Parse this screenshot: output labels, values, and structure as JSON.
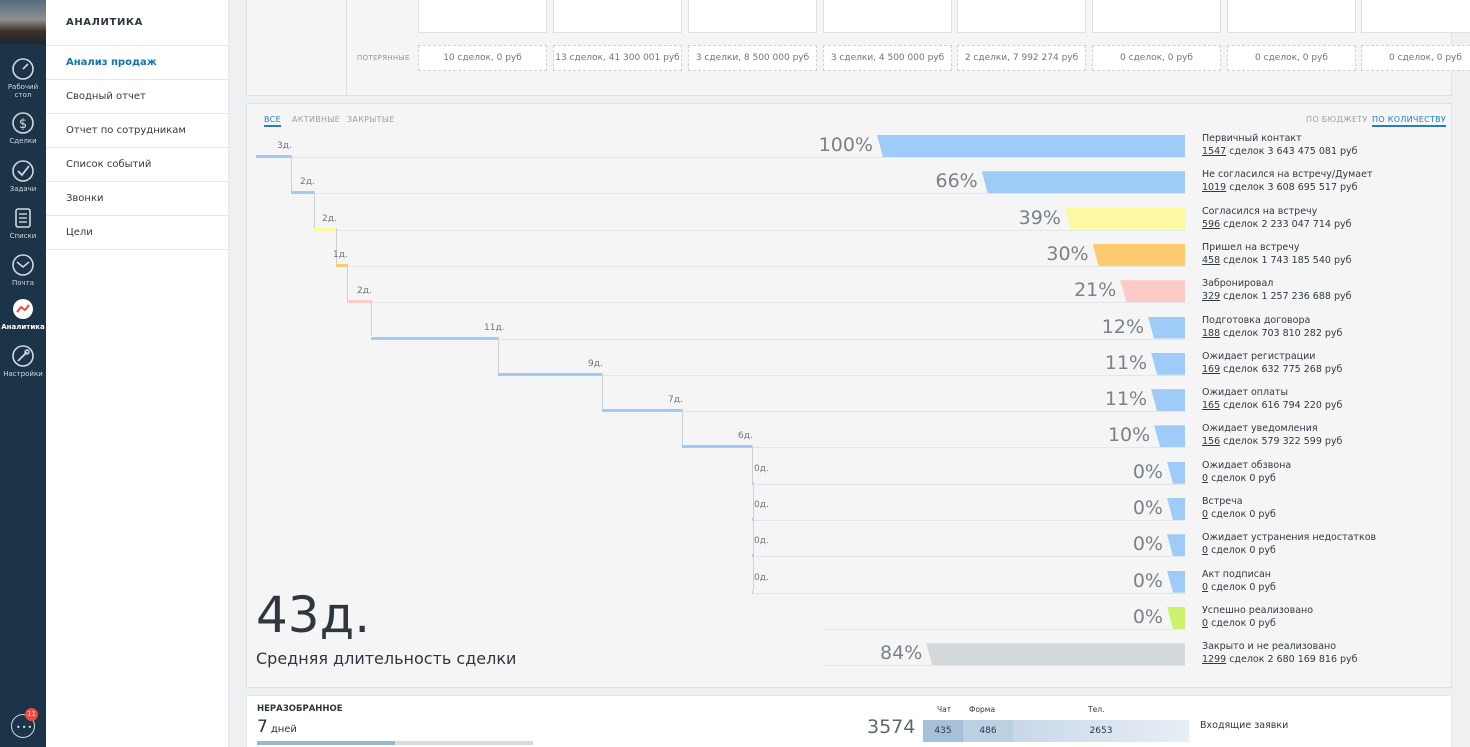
{
  "rail": {
    "items": [
      {
        "label": "Рабочий стол",
        "icon": "dashboard-icon"
      },
      {
        "label": "Сделки",
        "icon": "deals-icon"
      },
      {
        "label": "Задачи",
        "icon": "tasks-icon"
      },
      {
        "label": "Списки",
        "icon": "lists-icon"
      },
      {
        "label": "Почта",
        "icon": "mail-icon"
      },
      {
        "label": "Аналитика",
        "icon": "analytics-icon"
      },
      {
        "label": "Настройки",
        "icon": "settings-icon"
      }
    ],
    "chat_badge": "11"
  },
  "submenu": {
    "title": "АНАЛИТИКА",
    "items": [
      "Анализ продаж",
      "Сводный отчет",
      "Отчет по сотрудникам",
      "Список событий",
      "Звонки",
      "Цели"
    ]
  },
  "top_panel": {
    "lost_label": "ПОТЕРЯННЫЕ",
    "lost": [
      "10 сделок, 0 руб",
      "13 сделок, 41 300 001 руб",
      "3 сделки, 8 500 000 руб",
      "3 сделки, 4 500 000 руб",
      "2 сделки, 7 992 274 руб",
      "0 сделок, 0 руб",
      "0 сделок, 0 руб",
      "0 сделок, 0 руб"
    ]
  },
  "funnel": {
    "tabs": {
      "all": "ВСЕ",
      "active": "АКТИВНЫЕ",
      "closed": "ЗАКРЫТЫЕ",
      "by_budget": "ПО БЮДЖЕТУ",
      "by_count": "ПО КОЛИЧЕСТВУ"
    },
    "stages": [
      {
        "name": "Первичный контакт",
        "count": "1547",
        "rest": " сделок 3 643 475 081 руб",
        "pct": "100%",
        "value": 100,
        "color": "#9ecbf7",
        "days": "3д."
      },
      {
        "name": "Не согласился на встречу/Думает",
        "count": "1019",
        "rest": " сделок 3 608 695 517 руб",
        "pct": "66%",
        "value": 66,
        "color": "#9ecbf7",
        "days": "2д."
      },
      {
        "name": "Согласился на встречу",
        "count": "596",
        "rest": " сделок 2 233 047 714 руб",
        "pct": "39%",
        "value": 39,
        "color": "#fbf9a1",
        "days": "2д."
      },
      {
        "name": "Пришел на встречу",
        "count": "458",
        "rest": " сделок 1 743 185 540 руб",
        "pct": "30%",
        "value": 30,
        "color": "#fdcb6e",
        "days": "1д."
      },
      {
        "name": "Забронировал",
        "count": "329",
        "rest": " сделок 1 257 236 688 руб",
        "pct": "21%",
        "value": 21,
        "color": "#fccbc7",
        "days": "2д."
      },
      {
        "name": "Подготовка договора",
        "count": "188",
        "rest": " сделок 703 810 282 руб",
        "pct": "12%",
        "value": 12,
        "color": "#9ecbf7",
        "days": "11д."
      },
      {
        "name": "Ожидает регистрации",
        "count": "169",
        "rest": " сделок 632 775 268 руб",
        "pct": "11%",
        "value": 11,
        "color": "#9ecbf7",
        "days": "9д."
      },
      {
        "name": "Ожидает оплаты",
        "count": "165",
        "rest": " сделок 616 794 220 руб",
        "pct": "11%",
        "value": 11,
        "color": "#9ecbf7",
        "days": "7д."
      },
      {
        "name": "Ожидает уведомления",
        "count": "156",
        "rest": " сделок 579 322 599 руб",
        "pct": "10%",
        "value": 10,
        "color": "#9ecbf7",
        "days": "6д."
      },
      {
        "name": "Ожидает обзвона",
        "count": "0",
        "rest": " сделок 0 руб",
        "pct": "0%",
        "value": 0,
        "color": "#9ecbf7",
        "days": "0д."
      },
      {
        "name": "Встреча",
        "count": "0",
        "rest": " сделок 0 руб",
        "pct": "0%",
        "value": 0,
        "color": "#9ecbf7",
        "days": "0д."
      },
      {
        "name": "Ожидает устранения недостатков",
        "count": "0",
        "rest": " сделок 0 руб",
        "pct": "0%",
        "value": 0,
        "color": "#9ecbf7",
        "days": "0д."
      },
      {
        "name": "Акт подписан",
        "count": "0",
        "rest": " сделок 0 руб",
        "pct": "0%",
        "value": 0,
        "color": "#9ecbf7",
        "days": "0д."
      },
      {
        "name": "Успешно реализовано",
        "count": "0",
        "rest": " сделок 0 руб",
        "pct": "0%",
        "value": 0,
        "color": "#ccf26e",
        "days": ""
      },
      {
        "name": "Закрыто и не реализовано",
        "count": "1299",
        "rest": " сделок 2 680 169 816 руб",
        "pct": "84%",
        "value": 84,
        "color": "#d5d8db",
        "days": ""
      }
    ],
    "avg_days": "43д.",
    "avg_caption": "Средняя длительность сделки"
  },
  "bottom": {
    "unsorted_title": "НЕРАЗОБРАННОЕ",
    "unsorted_value": "7",
    "unsorted_unit": "дней",
    "unsorted_progress": 0.5,
    "incoming_total": "3574",
    "chat_label": "Чат",
    "chat_value": "435",
    "form_label": "Форма",
    "form_value": "486",
    "phone_label": "Тел.",
    "phone_value": "2653",
    "incoming_label": "Входящие заявки"
  }
}
